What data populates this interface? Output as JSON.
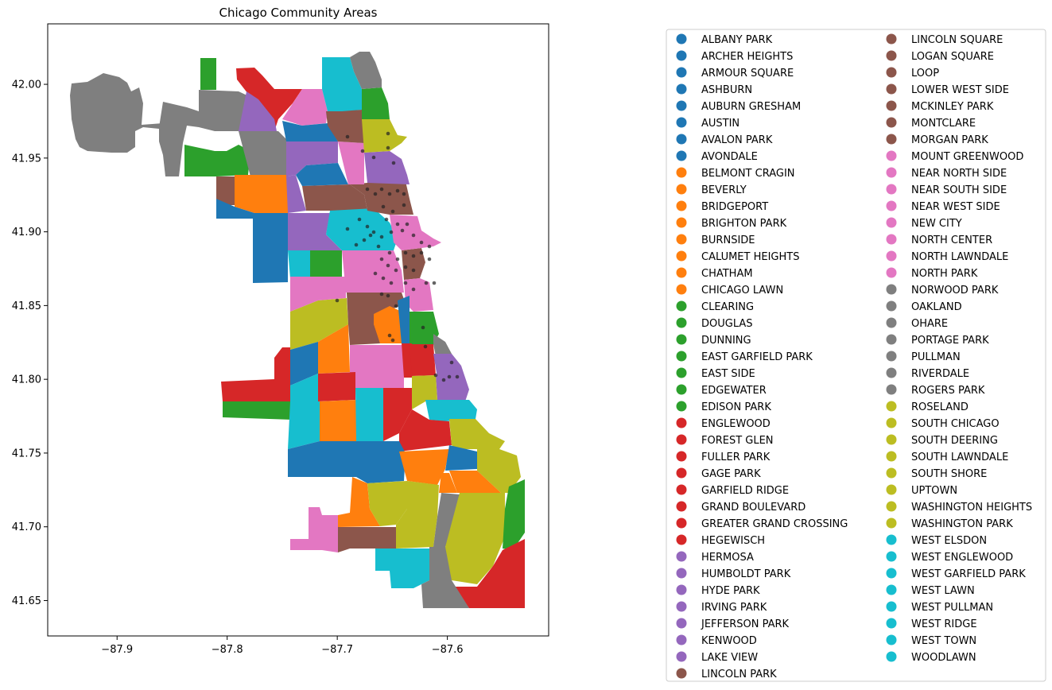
{
  "map": {
    "title": "Chicago Community Areas",
    "xlim": [
      -87.963,
      -87.508
    ],
    "ylim": [
      41.626,
      42.041
    ],
    "xticks": [
      -87.9,
      -87.8,
      -87.7,
      -87.6
    ],
    "xtick_labels": [
      "−87.9",
      "−87.8",
      "−87.7",
      "−87.6"
    ],
    "yticks": [
      41.65,
      41.7,
      41.75,
      41.8,
      41.85,
      41.9,
      41.95,
      42.0
    ],
    "ytick_labels": [
      "41.65",
      "41.70",
      "41.75",
      "41.80",
      "41.85",
      "41.90",
      "41.95",
      "42.00"
    ],
    "palette": {
      "blue": "#1f77b4",
      "orange": "#ff7f0e",
      "green": "#2ca02c",
      "red": "#d62728",
      "purple": "#9467bd",
      "brown": "#8c564b",
      "pink": "#e377c2",
      "gray": "#7f7f7f",
      "olive": "#bcbd22",
      "cyan": "#17becf"
    },
    "points_color": "#222222",
    "legend_position": "right"
  },
  "legend": {
    "columns": [
      [
        {
          "label": "ALBANY PARK",
          "color": "#1f77b4"
        },
        {
          "label": "ARCHER HEIGHTS",
          "color": "#1f77b4"
        },
        {
          "label": "ARMOUR SQUARE",
          "color": "#1f77b4"
        },
        {
          "label": "ASHBURN",
          "color": "#1f77b4"
        },
        {
          "label": "AUBURN GRESHAM",
          "color": "#1f77b4"
        },
        {
          "label": "AUSTIN",
          "color": "#1f77b4"
        },
        {
          "label": "AVALON PARK",
          "color": "#1f77b4"
        },
        {
          "label": "AVONDALE",
          "color": "#1f77b4"
        },
        {
          "label": "BELMONT CRAGIN",
          "color": "#ff7f0e"
        },
        {
          "label": "BEVERLY",
          "color": "#ff7f0e"
        },
        {
          "label": "BRIDGEPORT",
          "color": "#ff7f0e"
        },
        {
          "label": "BRIGHTON PARK",
          "color": "#ff7f0e"
        },
        {
          "label": "BURNSIDE",
          "color": "#ff7f0e"
        },
        {
          "label": "CALUMET HEIGHTS",
          "color": "#ff7f0e"
        },
        {
          "label": "CHATHAM",
          "color": "#ff7f0e"
        },
        {
          "label": "CHICAGO LAWN",
          "color": "#ff7f0e"
        },
        {
          "label": "CLEARING",
          "color": "#2ca02c"
        },
        {
          "label": "DOUGLAS",
          "color": "#2ca02c"
        },
        {
          "label": "DUNNING",
          "color": "#2ca02c"
        },
        {
          "label": "EAST GARFIELD PARK",
          "color": "#2ca02c"
        },
        {
          "label": "EAST SIDE",
          "color": "#2ca02c"
        },
        {
          "label": "EDGEWATER",
          "color": "#2ca02c"
        },
        {
          "label": "EDISON PARK",
          "color": "#2ca02c"
        },
        {
          "label": "ENGLEWOOD",
          "color": "#d62728"
        },
        {
          "label": "FOREST GLEN",
          "color": "#d62728"
        },
        {
          "label": "FULLER PARK",
          "color": "#d62728"
        },
        {
          "label": "GAGE PARK",
          "color": "#d62728"
        },
        {
          "label": "GARFIELD RIDGE",
          "color": "#d62728"
        },
        {
          "label": "GRAND BOULEVARD",
          "color": "#d62728"
        },
        {
          "label": "GREATER GRAND CROSSING",
          "color": "#d62728"
        },
        {
          "label": "HEGEWISCH",
          "color": "#d62728"
        },
        {
          "label": "HERMOSA",
          "color": "#9467bd"
        },
        {
          "label": "HUMBOLDT PARK",
          "color": "#9467bd"
        },
        {
          "label": "HYDE PARK",
          "color": "#9467bd"
        },
        {
          "label": "IRVING PARK",
          "color": "#9467bd"
        },
        {
          "label": "JEFFERSON PARK",
          "color": "#9467bd"
        },
        {
          "label": "KENWOOD",
          "color": "#9467bd"
        },
        {
          "label": "LAKE VIEW",
          "color": "#9467bd"
        },
        {
          "label": "LINCOLN PARK",
          "color": "#8c564b"
        }
      ],
      [
        {
          "label": "LINCOLN SQUARE",
          "color": "#8c564b"
        },
        {
          "label": "LOGAN SQUARE",
          "color": "#8c564b"
        },
        {
          "label": "LOOP",
          "color": "#8c564b"
        },
        {
          "label": "LOWER WEST SIDE",
          "color": "#8c564b"
        },
        {
          "label": "MCKINLEY PARK",
          "color": "#8c564b"
        },
        {
          "label": "MONTCLARE",
          "color": "#8c564b"
        },
        {
          "label": "MORGAN PARK",
          "color": "#8c564b"
        },
        {
          "label": "MOUNT GREENWOOD",
          "color": "#e377c2"
        },
        {
          "label": "NEAR NORTH SIDE",
          "color": "#e377c2"
        },
        {
          "label": "NEAR SOUTH SIDE",
          "color": "#e377c2"
        },
        {
          "label": "NEAR WEST SIDE",
          "color": "#e377c2"
        },
        {
          "label": "NEW CITY",
          "color": "#e377c2"
        },
        {
          "label": "NORTH CENTER",
          "color": "#e377c2"
        },
        {
          "label": "NORTH LAWNDALE",
          "color": "#e377c2"
        },
        {
          "label": "NORTH PARK",
          "color": "#e377c2"
        },
        {
          "label": "NORWOOD PARK",
          "color": "#7f7f7f"
        },
        {
          "label": "OAKLAND",
          "color": "#7f7f7f"
        },
        {
          "label": "OHARE",
          "color": "#7f7f7f"
        },
        {
          "label": "PORTAGE PARK",
          "color": "#7f7f7f"
        },
        {
          "label": "PULLMAN",
          "color": "#7f7f7f"
        },
        {
          "label": "RIVERDALE",
          "color": "#7f7f7f"
        },
        {
          "label": "ROGERS PARK",
          "color": "#7f7f7f"
        },
        {
          "label": "ROSELAND",
          "color": "#bcbd22"
        },
        {
          "label": "SOUTH CHICAGO",
          "color": "#bcbd22"
        },
        {
          "label": "SOUTH DEERING",
          "color": "#bcbd22"
        },
        {
          "label": "SOUTH LAWNDALE",
          "color": "#bcbd22"
        },
        {
          "label": "SOUTH SHORE",
          "color": "#bcbd22"
        },
        {
          "label": "UPTOWN",
          "color": "#bcbd22"
        },
        {
          "label": "WASHINGTON HEIGHTS",
          "color": "#bcbd22"
        },
        {
          "label": "WASHINGTON PARK",
          "color": "#bcbd22"
        },
        {
          "label": "WEST ELSDON",
          "color": "#17becf"
        },
        {
          "label": "WEST ENGLEWOOD",
          "color": "#17becf"
        },
        {
          "label": "WEST GARFIELD PARK",
          "color": "#17becf"
        },
        {
          "label": "WEST LAWN",
          "color": "#17becf"
        },
        {
          "label": "WEST PULLMAN",
          "color": "#17becf"
        },
        {
          "label": "WEST RIDGE",
          "color": "#17becf"
        },
        {
          "label": "WEST TOWN",
          "color": "#17becf"
        },
        {
          "label": "WOODLAWN",
          "color": "#17becf"
        }
      ]
    ]
  }
}
